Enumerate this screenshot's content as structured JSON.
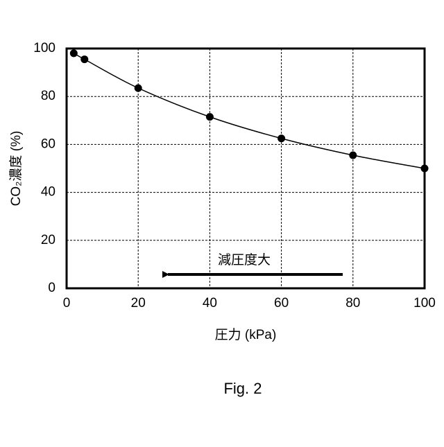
{
  "chart_data": {
    "type": "scatter-line",
    "x": [
      2,
      5,
      20,
      40,
      60,
      80,
      100
    ],
    "series": [
      {
        "name": null,
        "color": "#000000",
        "values": [
          98,
          95.5,
          83.5,
          71.5,
          62.5,
          55.5,
          50
        ]
      }
    ],
    "xlim": [
      0,
      100
    ],
    "xticks": [
      0,
      20,
      40,
      60,
      80,
      100
    ],
    "ylim": [
      0,
      100
    ],
    "yticks": [
      0,
      20,
      40,
      60,
      80,
      100
    ],
    "grid": true,
    "xlabel": "圧力 (kPa)",
    "ylabel": "CO₂濃度 (%)",
    "annotation": "減圧度大",
    "caption": "Fig. 2"
  }
}
